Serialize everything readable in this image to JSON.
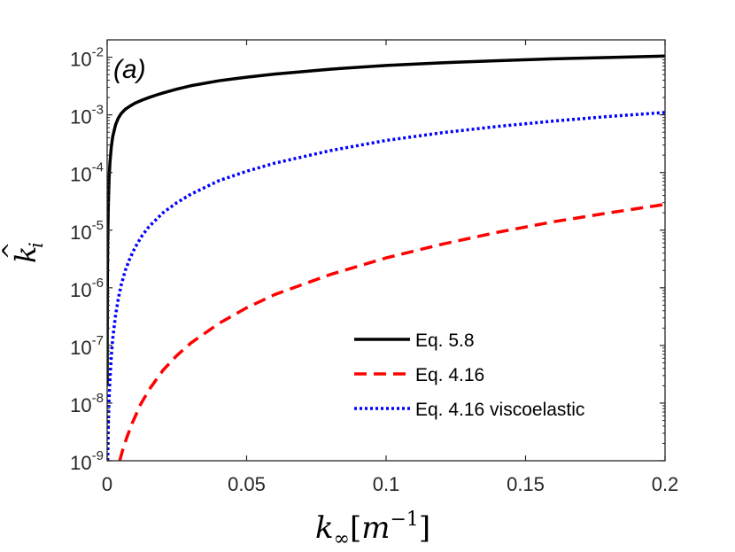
{
  "chart_data": {
    "type": "line",
    "panel_label": "(a)",
    "xlabel": {
      "base": "k",
      "sub": "∞",
      "bracket_open": "[",
      "unit": "m",
      "exp": "−1",
      "bracket_close": "]"
    },
    "ylabel": {
      "base": "k",
      "hat": "^",
      "sub": "i"
    },
    "x_scale": "linear",
    "y_scale": "log",
    "xlim": [
      0,
      0.2
    ],
    "ylim": [
      1e-09,
      0.02
    ],
    "x_ticks": [
      {
        "value": 0,
        "label": "0"
      },
      {
        "value": 0.05,
        "label": "0.05"
      },
      {
        "value": 0.1,
        "label": "0.1"
      },
      {
        "value": 0.15,
        "label": "0.15"
      },
      {
        "value": 0.2,
        "label": "0.2"
      }
    ],
    "y_ticks": [
      {
        "value": -2,
        "base": "10",
        "exp": "-2"
      },
      {
        "value": -3,
        "base": "10",
        "exp": "-3"
      },
      {
        "value": -4,
        "base": "10",
        "exp": "-4"
      },
      {
        "value": -5,
        "base": "10",
        "exp": "-5"
      },
      {
        "value": -6,
        "base": "10",
        "exp": "-6"
      },
      {
        "value": -7,
        "base": "10",
        "exp": "-7"
      },
      {
        "value": -8,
        "base": "10",
        "exp": "-8"
      },
      {
        "value": -9,
        "base": "10",
        "exp": "-9"
      }
    ],
    "grid": false,
    "legend_position": "lower-right",
    "series": [
      {
        "name": "Eq. 5.8",
        "color": "#000000",
        "style": "solid",
        "x": [
          5e-06,
          2e-05,
          5e-05,
          0.0001,
          0.0002,
          0.0004,
          0.0007,
          0.001,
          0.0015,
          0.002,
          0.003,
          0.004,
          0.005,
          0.0065,
          0.008,
          0.01,
          0.0125,
          0.015,
          0.0175,
          0.02,
          0.025,
          0.03,
          0.04,
          0.05,
          0.06,
          0.08,
          0.1,
          0.12,
          0.14,
          0.16,
          0.18,
          0.2
        ],
        "y": [
          2e-08,
          1.3e-07,
          4.8e-07,
          1.6e-06,
          6.6e-06,
          2.5e-05,
          8e-05,
          0.00015,
          0.00028,
          0.00042,
          0.00067,
          0.00088,
          0.00105,
          0.00125,
          0.0014,
          0.0016,
          0.0018,
          0.002,
          0.0022,
          0.0024,
          0.0028,
          0.0032,
          0.0039,
          0.0045,
          0.0051,
          0.0062,
          0.0072,
          0.008,
          0.0087,
          0.0094,
          0.0099,
          0.0105
        ]
      },
      {
        "name": "Eq. 4.16",
        "color": "#ff0000",
        "style": "dashed",
        "x": [
          0.0045,
          0.0055,
          0.007,
          0.009,
          0.012,
          0.015,
          0.02,
          0.025,
          0.03,
          0.04,
          0.05,
          0.06,
          0.08,
          0.1,
          0.12,
          0.14,
          0.16,
          0.18,
          0.2
        ],
        "y": [
          1e-09,
          1.5e-09,
          2.5e-09,
          4.5e-09,
          9.5e-09,
          1.7e-08,
          3.7e-08,
          6.7e-08,
          1.1e-07,
          2.4e-07,
          4.5e-07,
          7.6e-07,
          1.7e-06,
          3.3e-06,
          5.7e-06,
          9.2e-06,
          1.4e-05,
          2e-05,
          2.8e-05
        ]
      },
      {
        "name": "Eq. 4.16 viscoelastic",
        "color": "#0000ff",
        "style": "dotted",
        "x": [
          0.0002,
          0.0004,
          0.0007,
          0.001,
          0.0015,
          0.002,
          0.003,
          0.004,
          0.005,
          0.0065,
          0.008,
          0.01,
          0.0125,
          0.015,
          0.02,
          0.025,
          0.03,
          0.04,
          0.05,
          0.06,
          0.08,
          0.1,
          0.12,
          0.14,
          0.16,
          0.18,
          0.2
        ],
        "y": [
          1e-09,
          3.8e-09,
          1.2e-08,
          2.6e-08,
          6.5e-08,
          1.3e-07,
          3.3e-07,
          6.5e-07,
          1.1e-06,
          2e-06,
          3.1e-06,
          5e-06,
          8e-06,
          1.15e-05,
          2e-05,
          3e-05,
          4.2e-05,
          7.2e-05,
          0.000105,
          0.000145,
          0.00024,
          0.00036,
          0.00049,
          0.00063,
          0.00078,
          0.00094,
          0.0011
        ]
      }
    ]
  }
}
